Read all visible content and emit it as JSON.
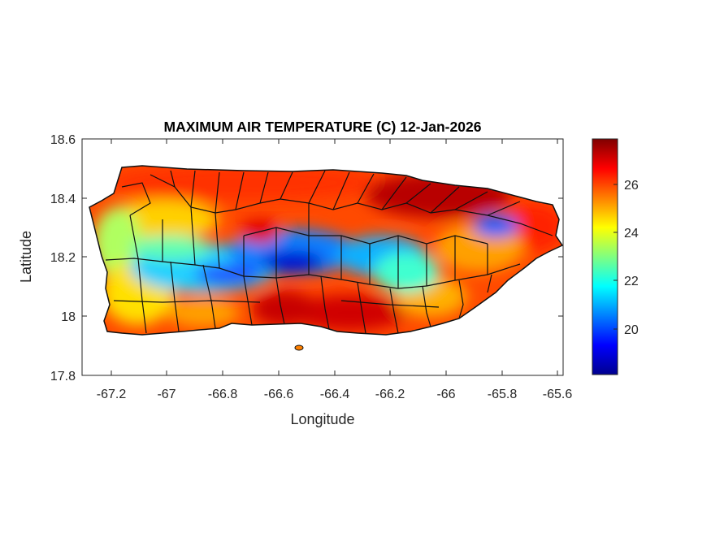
{
  "chart_data": {
    "type": "heatmap",
    "title": "MAXIMUM AIR TEMPERATURE (C) 12-Jan-2026",
    "xlabel": "Longitude",
    "ylabel": "Latitude",
    "xlim": [
      -67.3,
      -65.58
    ],
    "ylim": [
      17.8,
      18.6
    ],
    "xticks": [
      "-67.2",
      "-67",
      "-66.8",
      "-66.6",
      "-66.4",
      "-66.2",
      "-66",
      "-65.8",
      "-65.6"
    ],
    "yticks": [
      "18.6",
      "18.4",
      "18.2",
      "18",
      "17.8"
    ],
    "colorbar": {
      "range": [
        18,
        28
      ],
      "ticks": [
        "26",
        "24",
        "22",
        "20"
      ],
      "colormap": "jet"
    },
    "grid": false,
    "legend": "colorbar-right",
    "region": "Puerto Rico municipalities",
    "colors": {
      "min": "#00008f",
      "low": "#0060ff",
      "mid_low": "#20e0e0",
      "mid": "#f0f020",
      "mid_high": "#ff8000",
      "high": "#e00000",
      "max": "#800000"
    }
  }
}
